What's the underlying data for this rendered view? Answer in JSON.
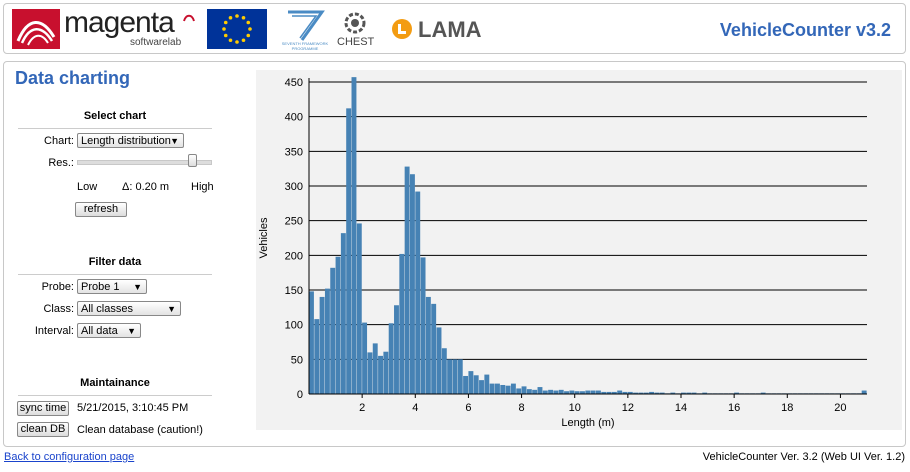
{
  "header": {
    "logos": {
      "magenta": {
        "name": "magenta",
        "sub": "softwarelab"
      },
      "eu": "eu-flag-icon",
      "fp7": {
        "line1": "SEVENTH FRAMEWORK",
        "line2": "PROGRAMME"
      },
      "chest": "CHEST",
      "lama": "LAMA"
    },
    "app_title": "VehicleCounter v3.2"
  },
  "page_title": "Data charting",
  "select_chart": {
    "title": "Select chart",
    "chart_label": "Chart:",
    "chart_value": "Length distribution",
    "res_label": "Res.:",
    "slider_position": 0.88,
    "low_label": "Low",
    "delta_label": "Δ: 0.20 m",
    "high_label": "High",
    "refresh_label": "refresh"
  },
  "filter": {
    "title": "Filter data",
    "probe_label": "Probe:",
    "probe_value": "Probe 1",
    "class_label": "Class:",
    "class_value": "All classes",
    "interval_label": "Interval:",
    "interval_value": "All data"
  },
  "maintenance": {
    "title": "Maintainance",
    "sync_label": "sync time",
    "sync_value": "5/21/2015, 3:10:45 PM",
    "clean_label": "clean DB",
    "clean_value": "Clean database (caution!)"
  },
  "footer": {
    "back_link": "Back to configuration page",
    "version": "VehicleCounter Ver. 3.2 (Web UI Ver. 1.2)"
  },
  "colors": {
    "accent": "#3367b8",
    "bar": "#4682b4",
    "logo_red": "#c8102e",
    "lama_orange": "#f39c12"
  },
  "chart_data": {
    "type": "bar",
    "xlabel": "Length (m)",
    "ylabel": "Vehicles",
    "xlim": [
      0,
      21
    ],
    "ylim": [
      0,
      450
    ],
    "x_ticks": [
      2,
      4,
      6,
      8,
      10,
      12,
      14,
      16,
      18,
      20
    ],
    "y_ticks": [
      0,
      50,
      100,
      150,
      200,
      250,
      300,
      350,
      400,
      450
    ],
    "bin_width": 0.2,
    "x": [
      0.1,
      0.3,
      0.5,
      0.7,
      0.9,
      1.1,
      1.3,
      1.5,
      1.7,
      1.9,
      2.1,
      2.3,
      2.5,
      2.7,
      2.9,
      3.1,
      3.3,
      3.5,
      3.7,
      3.9,
      4.1,
      4.3,
      4.5,
      4.7,
      4.9,
      5.1,
      5.3,
      5.5,
      5.7,
      5.9,
      6.1,
      6.3,
      6.5,
      6.7,
      6.9,
      7.1,
      7.3,
      7.5,
      7.7,
      7.9,
      8.1,
      8.3,
      8.5,
      8.7,
      8.9,
      9.1,
      9.3,
      9.5,
      9.7,
      9.9,
      10.1,
      10.3,
      10.5,
      10.7,
      10.9,
      11.1,
      11.3,
      11.5,
      11.7,
      11.9,
      12.1,
      12.3,
      12.5,
      12.7,
      12.9,
      13.1,
      13.3,
      13.5,
      13.7,
      13.9,
      14.1,
      14.3,
      14.5,
      14.7,
      14.9,
      15.1,
      15.3,
      15.5,
      15.7,
      15.9,
      16.1,
      16.3,
      16.5,
      16.7,
      16.9,
      17.1,
      17.3,
      17.5,
      17.7,
      17.9,
      18.1,
      18.3,
      18.5,
      18.7,
      18.9,
      19.1,
      19.3,
      19.5,
      19.7,
      19.9,
      20.1,
      20.3,
      20.5,
      20.7,
      20.9
    ],
    "values": [
      148,
      108,
      140,
      152,
      182,
      198,
      232,
      412,
      457,
      246,
      103,
      60,
      73,
      55,
      61,
      102,
      128,
      202,
      328,
      317,
      292,
      197,
      140,
      130,
      96,
      66,
      50,
      50,
      50,
      26,
      33,
      27,
      20,
      28,
      15,
      15,
      13,
      12,
      15,
      8,
      11,
      7,
      6,
      10,
      5,
      6,
      5,
      6,
      4,
      5,
      4,
      4,
      5,
      5,
      5,
      3,
      3,
      3,
      5,
      3,
      3,
      2,
      2,
      2,
      3,
      2,
      2,
      1,
      2,
      1,
      2,
      2,
      2,
      1,
      2,
      1,
      1,
      1,
      1,
      1,
      2,
      1,
      1,
      1,
      1,
      2,
      1,
      1,
      1,
      1,
      1,
      1,
      1,
      1,
      1,
      1,
      1,
      1,
      1,
      1,
      1,
      1,
      1,
      1,
      5
    ]
  }
}
